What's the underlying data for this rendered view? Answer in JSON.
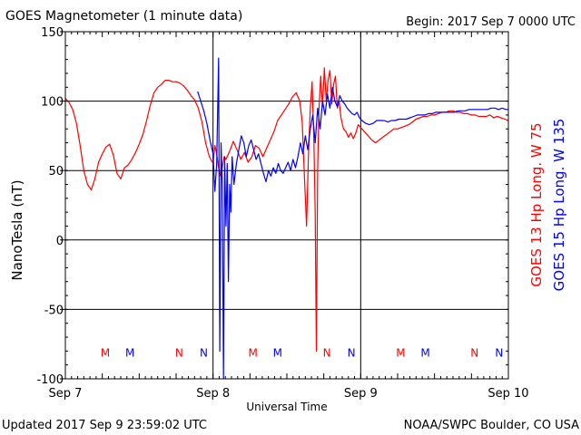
{
  "header": {
    "title": "GOES Magnetometer (1 minute data)",
    "begin": "Begin:  2017 Sep 7 0000 UTC"
  },
  "footer": {
    "updated": "Updated 2017 Sep  9 23:59:02 UTC",
    "credit": "NOAA/SWPC Boulder, CO USA"
  },
  "colors": {
    "goes13": "#ff0000",
    "goes15": "#0000ff",
    "grid": "#000000",
    "background": "#ffffff"
  },
  "chart_data": {
    "type": "line",
    "title": "GOES Magnetometer (1 minute data)",
    "xlabel": "Universal Time",
    "ylabel": "NanoTesla (nT)",
    "xlim": [
      0,
      72
    ],
    "ylim": [
      -100,
      150
    ],
    "x_unit": "hours since 2017 Sep 7 0000 UTC",
    "x_ticks": [
      {
        "value": 0,
        "label": "Sep 7"
      },
      {
        "value": 24,
        "label": "Sep 8"
      },
      {
        "value": 48,
        "label": "Sep 9"
      },
      {
        "value": 72,
        "label": "Sep 10"
      }
    ],
    "y_ticks": [
      -100,
      -50,
      0,
      50,
      100,
      150
    ],
    "grid": true,
    "legend_position": "right",
    "series": [
      {
        "name": "GOES 13 Hp  Long. W 75",
        "color": "#ff0000",
        "points": [
          [
            0,
            102
          ],
          [
            0.6,
            99
          ],
          [
            1.2,
            94
          ],
          [
            1.8,
            84
          ],
          [
            2.4,
            68
          ],
          [
            3,
            50
          ],
          [
            3.6,
            40
          ],
          [
            4.2,
            36
          ],
          [
            4.8,
            44
          ],
          [
            5.4,
            56
          ],
          [
            6,
            62
          ],
          [
            6.6,
            67
          ],
          [
            7.2,
            69
          ],
          [
            7.8,
            61
          ],
          [
            8.4,
            48
          ],
          [
            9,
            44
          ],
          [
            9.6,
            52
          ],
          [
            10.2,
            54
          ],
          [
            10.8,
            58
          ],
          [
            11.4,
            63
          ],
          [
            12,
            69
          ],
          [
            12.6,
            76
          ],
          [
            13.2,
            86
          ],
          [
            13.8,
            97
          ],
          [
            14.4,
            106
          ],
          [
            15,
            110
          ],
          [
            15.6,
            112
          ],
          [
            16.2,
            115
          ],
          [
            16.8,
            115
          ],
          [
            17.4,
            114
          ],
          [
            18,
            114
          ],
          [
            18.6,
            113
          ],
          [
            19.2,
            111
          ],
          [
            19.8,
            108
          ],
          [
            20.4,
            104
          ],
          [
            21,
            101
          ],
          [
            21.6,
            95
          ],
          [
            22.2,
            85
          ],
          [
            22.8,
            70
          ],
          [
            23.4,
            60
          ],
          [
            24,
            55
          ],
          [
            24.3,
            68
          ],
          [
            24.6,
            62
          ],
          [
            24.9,
            52
          ],
          [
            25.2,
            46
          ],
          [
            25.5,
            52
          ],
          [
            25.8,
            60
          ],
          [
            26.1,
            58
          ],
          [
            26.7,
            64
          ],
          [
            27.3,
            71
          ],
          [
            27.9,
            65
          ],
          [
            28.5,
            58
          ],
          [
            29.1,
            63
          ],
          [
            29.7,
            56
          ],
          [
            30.3,
            60
          ],
          [
            30.9,
            68
          ],
          [
            31.5,
            66
          ],
          [
            32.1,
            60
          ],
          [
            32.7,
            66
          ],
          [
            33.3,
            72
          ],
          [
            33.9,
            78
          ],
          [
            34.5,
            86
          ],
          [
            35.1,
            90
          ],
          [
            35.7,
            94
          ],
          [
            36.3,
            98
          ],
          [
            36.9,
            103
          ],
          [
            37.5,
            106
          ],
          [
            38.1,
            100
          ],
          [
            38.5,
            85
          ],
          [
            38.9,
            40
          ],
          [
            39.2,
            10
          ],
          [
            39.5,
            60
          ],
          [
            39.8,
            95
          ],
          [
            40.1,
            114
          ],
          [
            40.4,
            70
          ],
          [
            40.6,
            20
          ],
          [
            40.8,
            -80
          ],
          [
            41,
            50
          ],
          [
            41.2,
            92
          ],
          [
            41.5,
            118
          ],
          [
            41.8,
            96
          ],
          [
            42.1,
            124
          ],
          [
            42.4,
            100
          ],
          [
            42.7,
            115
          ],
          [
            43,
            122
          ],
          [
            43.3,
            98
          ],
          [
            43.6,
            112
          ],
          [
            43.9,
            118
          ],
          [
            44.2,
            95
          ],
          [
            44.5,
            100
          ],
          [
            44.8,
            88
          ],
          [
            45.2,
            80
          ],
          [
            45.6,
            78
          ],
          [
            46,
            74
          ],
          [
            46.4,
            77
          ],
          [
            46.8,
            73
          ],
          [
            47.2,
            77
          ],
          [
            47.6,
            83
          ],
          [
            48,
            81
          ],
          [
            48.6,
            78
          ],
          [
            49.2,
            75
          ],
          [
            49.8,
            72
          ],
          [
            50.4,
            70
          ],
          [
            51,
            72
          ],
          [
            51.6,
            74
          ],
          [
            52.2,
            76
          ],
          [
            52.8,
            78
          ],
          [
            53.4,
            80
          ],
          [
            54,
            80
          ],
          [
            54.6,
            81
          ],
          [
            55.2,
            82
          ],
          [
            55.8,
            83
          ],
          [
            56.4,
            85
          ],
          [
            57,
            87
          ],
          [
            57.6,
            88
          ],
          [
            58.2,
            89
          ],
          [
            58.8,
            89
          ],
          [
            59.4,
            90
          ],
          [
            60,
            90
          ],
          [
            60.6,
            91
          ],
          [
            61.2,
            92
          ],
          [
            61.8,
            92
          ],
          [
            62.4,
            93
          ],
          [
            63,
            93
          ],
          [
            63.6,
            92
          ],
          [
            64.2,
            92
          ],
          [
            64.8,
            91
          ],
          [
            65.4,
            91
          ],
          [
            66,
            90
          ],
          [
            66.6,
            90
          ],
          [
            67.2,
            89
          ],
          [
            67.8,
            89
          ],
          [
            68.4,
            89
          ],
          [
            69,
            90
          ],
          [
            69.6,
            88
          ],
          [
            70.2,
            89
          ],
          [
            70.8,
            88
          ],
          [
            71.4,
            87
          ],
          [
            72,
            86
          ]
        ],
        "markers": [
          {
            "x": 6.5,
            "label": "M"
          },
          {
            "x": 18.5,
            "label": "N"
          },
          {
            "x": 30.5,
            "label": "M"
          },
          {
            "x": 42.5,
            "label": "N"
          },
          {
            "x": 54.5,
            "label": "M"
          },
          {
            "x": 66.5,
            "label": "N"
          }
        ]
      },
      {
        "name": "GOES 15 Hp  Long. W 135",
        "color": "#0000ff",
        "points": [
          [
            21.5,
            107
          ],
          [
            22,
            100
          ],
          [
            22.5,
            93
          ],
          [
            23,
            84
          ],
          [
            23.5,
            72
          ],
          [
            24,
            62
          ],
          [
            24.3,
            35
          ],
          [
            24.6,
            55
          ],
          [
            24.9,
            131
          ],
          [
            25.1,
            -80
          ],
          [
            25.3,
            70
          ],
          [
            25.5,
            40
          ],
          [
            25.7,
            -100
          ],
          [
            25.9,
            60
          ],
          [
            26.1,
            10
          ],
          [
            26.3,
            55
          ],
          [
            26.5,
            -30
          ],
          [
            26.7,
            40
          ],
          [
            26.9,
            20
          ],
          [
            27.1,
            60
          ],
          [
            27.4,
            40
          ],
          [
            27.8,
            55
          ],
          [
            28.2,
            65
          ],
          [
            28.6,
            75
          ],
          [
            29,
            70
          ],
          [
            29.4,
            60
          ],
          [
            29.8,
            68
          ],
          [
            30.2,
            72
          ],
          [
            30.6,
            65
          ],
          [
            31,
            58
          ],
          [
            31.4,
            62
          ],
          [
            31.8,
            55
          ],
          [
            32.2,
            48
          ],
          [
            32.6,
            42
          ],
          [
            33,
            50
          ],
          [
            33.4,
            46
          ],
          [
            33.8,
            52
          ],
          [
            34.2,
            48
          ],
          [
            34.6,
            55
          ],
          [
            35,
            50
          ],
          [
            35.4,
            48
          ],
          [
            35.8,
            52
          ],
          [
            36.2,
            56
          ],
          [
            36.6,
            50
          ],
          [
            37,
            58
          ],
          [
            37.4,
            52
          ],
          [
            37.8,
            60
          ],
          [
            38.2,
            70
          ],
          [
            38.6,
            62
          ],
          [
            39,
            75
          ],
          [
            39.4,
            65
          ],
          [
            39.8,
            80
          ],
          [
            40.2,
            90
          ],
          [
            40.6,
            70
          ],
          [
            41,
            95
          ],
          [
            41.4,
            80
          ],
          [
            41.8,
            100
          ],
          [
            42.2,
            90
          ],
          [
            42.6,
            105
          ],
          [
            43,
            95
          ],
          [
            43.4,
            110
          ],
          [
            43.8,
            100
          ],
          [
            44.2,
            96
          ],
          [
            44.6,
            104
          ],
          [
            45,
            100
          ],
          [
            45.4,
            98
          ],
          [
            45.8,
            95
          ],
          [
            46.2,
            93
          ],
          [
            46.6,
            91
          ],
          [
            47,
            90
          ],
          [
            47.4,
            92
          ],
          [
            47.8,
            88
          ],
          [
            48.2,
            86
          ],
          [
            48.8,
            84
          ],
          [
            49.4,
            83
          ],
          [
            50,
            84
          ],
          [
            50.6,
            86
          ],
          [
            51.2,
            86
          ],
          [
            51.8,
            86
          ],
          [
            52.4,
            85
          ],
          [
            53,
            86
          ],
          [
            53.6,
            86
          ],
          [
            54.2,
            87
          ],
          [
            54.8,
            87
          ],
          [
            55.4,
            87
          ],
          [
            56,
            88
          ],
          [
            56.6,
            89
          ],
          [
            57.2,
            90
          ],
          [
            57.8,
            90
          ],
          [
            58.4,
            90
          ],
          [
            59,
            91
          ],
          [
            59.6,
            91
          ],
          [
            60.2,
            92
          ],
          [
            60.8,
            92
          ],
          [
            61.4,
            92
          ],
          [
            62,
            92
          ],
          [
            62.6,
            92
          ],
          [
            63.2,
            92
          ],
          [
            63.8,
            93
          ],
          [
            64.4,
            93
          ],
          [
            65,
            93
          ],
          [
            65.6,
            94
          ],
          [
            66.2,
            94
          ],
          [
            66.8,
            94
          ],
          [
            67.4,
            94
          ],
          [
            68,
            94
          ],
          [
            68.6,
            94
          ],
          [
            69.2,
            95
          ],
          [
            69.8,
            95
          ],
          [
            70.4,
            94
          ],
          [
            71,
            95
          ],
          [
            71.6,
            94
          ],
          [
            72,
            94
          ]
        ],
        "markers": [
          {
            "x": 10.5,
            "label": "M"
          },
          {
            "x": 22.5,
            "label": "N"
          },
          {
            "x": 34.5,
            "label": "M"
          },
          {
            "x": 46.5,
            "label": "N"
          },
          {
            "x": 58.5,
            "label": "M"
          },
          {
            "x": 70.5,
            "label": "N"
          }
        ]
      }
    ]
  }
}
